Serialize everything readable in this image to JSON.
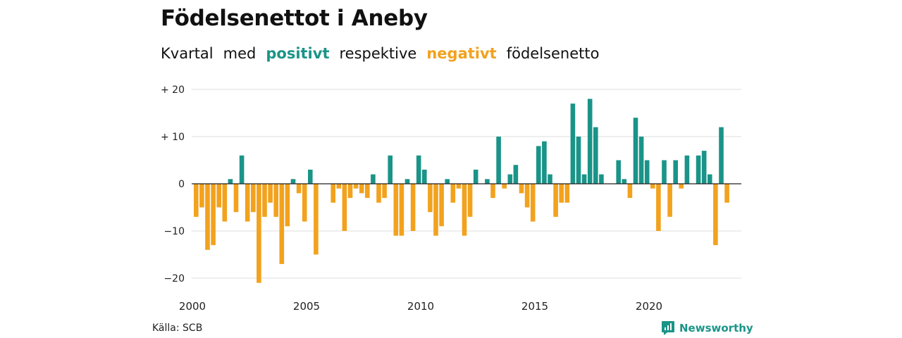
{
  "title": "Födelsenettot i Aneby",
  "subtitle": {
    "part1": "Kvartal",
    "part2": "med",
    "positive_word": "positivt",
    "part3": "respektive",
    "negative_word": "negativt",
    "part4": "födelsenetto"
  },
  "source": "Källa: SCB",
  "brand": {
    "name": "Newsworthy",
    "icon": "newsworthy-logo-icon"
  },
  "colors": {
    "positive": "#1a9488",
    "negative": "#f2a21d",
    "grid": "#dddddd",
    "zero": "#222222"
  },
  "chart_data": {
    "type": "bar",
    "title": "Födelsenettot i Aneby",
    "x_start_year": 2000,
    "quarters_per_year": 4,
    "ylim": [
      -22,
      20
    ],
    "y_ticks": [
      {
        "value": 20,
        "label": "+ 20"
      },
      {
        "value": 10,
        "label": "+ 10"
      },
      {
        "value": 0,
        "label": "0"
      },
      {
        "value": -10,
        "label": "−10"
      },
      {
        "value": -20,
        "label": "−20"
      }
    ],
    "x_ticks": [
      "2000",
      "2005",
      "2010",
      "2015",
      "2020"
    ],
    "grid": true,
    "values": [
      -7,
      -5,
      -14,
      -13,
      -5,
      -8,
      1,
      -6,
      6,
      -8,
      -6,
      -21,
      -7,
      -4,
      -7,
      -17,
      -9,
      1,
      -2,
      -8,
      3,
      -15,
      0,
      0,
      -4,
      -1,
      -10,
      -3,
      -1,
      -2,
      -3,
      2,
      -4,
      -3,
      6,
      -11,
      -11,
      1,
      -10,
      6,
      3,
      -6,
      -11,
      -9,
      1,
      -4,
      -1,
      -11,
      -7,
      3,
      0,
      1,
      -3,
      10,
      -1,
      2,
      4,
      -2,
      -5,
      -8,
      8,
      9,
      2,
      -7,
      -4,
      -4,
      17,
      10,
      2,
      18,
      12,
      2,
      0,
      0,
      5,
      1,
      -3,
      14,
      10,
      5,
      -1,
      -10,
      5,
      -7,
      5,
      -1,
      6,
      0,
      6,
      7,
      2,
      -13,
      12,
      -4
    ]
  }
}
